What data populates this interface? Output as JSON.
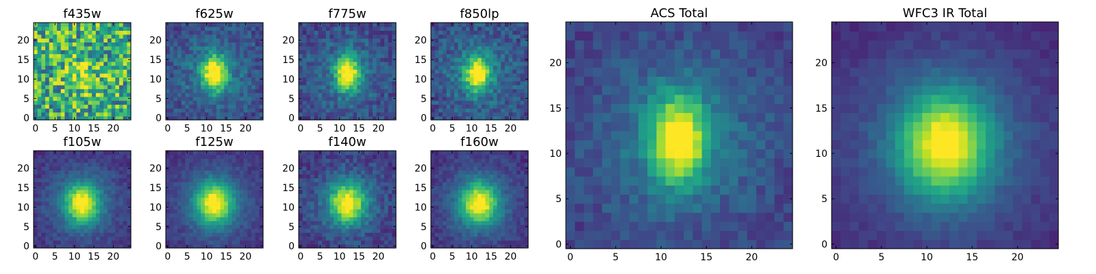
{
  "chart_data": [
    {
      "type": "heatmap",
      "title": "f435w",
      "colormap": "viridis",
      "xlim": [
        -0.5,
        24.5
      ],
      "ylim": [
        -0.5,
        24.5
      ],
      "xticks": [
        0,
        5,
        10,
        15,
        20
      ],
      "yticks": [
        0,
        5,
        10,
        15,
        20
      ],
      "grid": false,
      "model": {
        "kind": "noisy",
        "amp": 0.25,
        "sx": 3.0,
        "sy": 3.5,
        "cx": 12,
        "cy": 11,
        "bg": 0.62,
        "noise": 0.34,
        "seed": 11
      }
    },
    {
      "type": "heatmap",
      "title": "f625w",
      "colormap": "viridis",
      "xlim": [
        -0.5,
        24.5
      ],
      "ylim": [
        -0.5,
        24.5
      ],
      "xticks": [
        0,
        5,
        10,
        15,
        20
      ],
      "yticks": [
        0,
        5,
        10,
        15,
        20
      ],
      "grid": false,
      "model": {
        "kind": "blob",
        "amp": 0.75,
        "sx": 2.2,
        "sy": 3.2,
        "cx": 12,
        "cy": 11.5,
        "bg": 0.22,
        "halo": 0.18,
        "hs": 7,
        "noise": 0.12,
        "seed": 21
      }
    },
    {
      "type": "heatmap",
      "title": "f775w",
      "colormap": "viridis",
      "xlim": [
        -0.5,
        24.5
      ],
      "ylim": [
        -0.5,
        24.5
      ],
      "xticks": [
        0,
        5,
        10,
        15,
        20
      ],
      "yticks": [
        0,
        5,
        10,
        15,
        20
      ],
      "grid": false,
      "model": {
        "kind": "blob",
        "amp": 0.78,
        "sx": 2.0,
        "sy": 3.0,
        "cx": 12,
        "cy": 11.5,
        "bg": 0.2,
        "halo": 0.2,
        "hs": 7,
        "noise": 0.12,
        "seed": 31
      }
    },
    {
      "type": "heatmap",
      "title": "f850lp",
      "colormap": "viridis",
      "xlim": [
        -0.5,
        24.5
      ],
      "ylim": [
        -0.5,
        24.5
      ],
      "xticks": [
        0,
        5,
        10,
        15,
        20
      ],
      "yticks": [
        0,
        5,
        10,
        15,
        20
      ],
      "grid": false,
      "model": {
        "kind": "blob",
        "amp": 0.75,
        "sx": 2.1,
        "sy": 3.0,
        "cx": 11.5,
        "cy": 11.5,
        "bg": 0.22,
        "halo": 0.2,
        "hs": 7,
        "noise": 0.13,
        "seed": 41
      }
    },
    {
      "type": "heatmap",
      "title": "ACS Total",
      "colormap": "viridis",
      "xlim": [
        -0.5,
        24.5
      ],
      "ylim": [
        -0.5,
        24.5
      ],
      "xticks": [
        0,
        5,
        10,
        15,
        20
      ],
      "yticks": [
        0,
        5,
        10,
        15,
        20
      ],
      "grid": false,
      "model": {
        "kind": "blob",
        "amp": 0.78,
        "sx": 2.0,
        "sy": 3.2,
        "cx": 12,
        "cy": 11.5,
        "bg": 0.18,
        "halo": 0.24,
        "hs": 7,
        "noise": 0.08,
        "seed": 51
      }
    },
    {
      "type": "heatmap",
      "title": "WFC3 IR Total",
      "colormap": "viridis",
      "xlim": [
        -0.5,
        24.5
      ],
      "ylim": [
        -0.5,
        24.5
      ],
      "xticks": [
        0,
        5,
        10,
        15,
        20
      ],
      "yticks": [
        0,
        5,
        10,
        15,
        20
      ],
      "grid": false,
      "model": {
        "kind": "blob",
        "amp": 0.72,
        "sx": 3.3,
        "sy": 3.8,
        "cx": 12,
        "cy": 11,
        "bg": 0.1,
        "halo": 0.26,
        "hs": 8,
        "noise": 0.04,
        "seed": 61
      }
    },
    {
      "type": "heatmap",
      "title": "f105w",
      "colormap": "viridis",
      "xlim": [
        -0.5,
        24.5
      ],
      "ylim": [
        -0.5,
        24.5
      ],
      "xticks": [
        0,
        5,
        10,
        15,
        20
      ],
      "yticks": [
        0,
        5,
        10,
        15,
        20
      ],
      "grid": false,
      "model": {
        "kind": "blob",
        "amp": 0.72,
        "sx": 3.0,
        "sy": 3.4,
        "cx": 12,
        "cy": 11,
        "bg": 0.12,
        "halo": 0.24,
        "hs": 8,
        "noise": 0.07,
        "seed": 71
      }
    },
    {
      "type": "heatmap",
      "title": "f125w",
      "colormap": "viridis",
      "xlim": [
        -0.5,
        24.5
      ],
      "ylim": [
        -0.5,
        24.5
      ],
      "xticks": [
        0,
        5,
        10,
        15,
        20
      ],
      "yticks": [
        0,
        5,
        10,
        15,
        20
      ],
      "grid": false,
      "model": {
        "kind": "blob",
        "amp": 0.72,
        "sx": 3.2,
        "sy": 3.6,
        "cx": 12,
        "cy": 11,
        "bg": 0.12,
        "halo": 0.24,
        "hs": 8,
        "noise": 0.06,
        "seed": 81
      }
    },
    {
      "type": "heatmap",
      "title": "f140w",
      "colormap": "viridis",
      "xlim": [
        -0.5,
        24.5
      ],
      "ylim": [
        -0.5,
        24.5
      ],
      "xticks": [
        0,
        5,
        10,
        15,
        20
      ],
      "yticks": [
        0,
        5,
        10,
        15,
        20
      ],
      "grid": false,
      "model": {
        "kind": "blob",
        "amp": 0.72,
        "sx": 3.1,
        "sy": 3.5,
        "cx": 12,
        "cy": 11,
        "bg": 0.14,
        "halo": 0.22,
        "hs": 8,
        "noise": 0.1,
        "seed": 91
      }
    },
    {
      "type": "heatmap",
      "title": "f160w",
      "colormap": "viridis",
      "xlim": [
        -0.5,
        24.5
      ],
      "ylim": [
        -0.5,
        24.5
      ],
      "xticks": [
        0,
        5,
        10,
        15,
        20
      ],
      "yticks": [
        0,
        5,
        10,
        15,
        20
      ],
      "grid": false,
      "model": {
        "kind": "blob",
        "amp": 0.72,
        "sx": 3.2,
        "sy": 3.6,
        "cx": 12,
        "cy": 11,
        "bg": 0.12,
        "halo": 0.24,
        "hs": 8,
        "noise": 0.07,
        "seed": 101
      }
    }
  ]
}
